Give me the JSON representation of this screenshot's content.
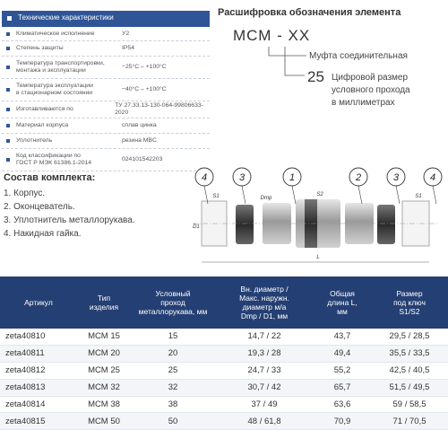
{
  "specs": {
    "title": "Технические характеристики",
    "rows": [
      [
        "Климатическое исполнение",
        "У2"
      ],
      [
        "Степень защиты",
        "IP54"
      ],
      [
        "Температура транспортировки,\nмонтажа и эксплуатации",
        "−25°C – +100°C"
      ],
      [
        "Температура эксплуатации\nв стационарном состоянии",
        "−40°C – +100°C"
      ],
      [
        "Изготавливаются по",
        "ТУ 27.33.13-130-064-99806633-2020"
      ],
      [
        "Материал корпуса",
        "сплав цинка"
      ],
      [
        "Уплотнитель",
        "резина MBC"
      ],
      [
        "Код классификации по\nГОСТ Р МЭК 61386.1-2014",
        "024101542203"
      ]
    ]
  },
  "decoding": {
    "title": "Расшифровка обозначения элемента",
    "code": "МСМ - XX",
    "code_meaning": "Муфта соединительная",
    "example": "25",
    "example_meaning": "Цифровой размер\nусловного прохода\nв миллиметрах"
  },
  "kit": {
    "title": "Состав комплекта:",
    "items": [
      "1. Корпус.",
      "2. Оконцеватель.",
      "3. Уплотнитель металлорукава.",
      "4. Накидная гайка."
    ]
  },
  "drawing": {
    "callouts": [
      "4",
      "3",
      "1",
      "2",
      "3",
      "4"
    ],
    "dims": [
      "S1",
      "D1",
      "Dmp",
      "S2",
      "S1",
      "L"
    ]
  },
  "table": {
    "header": [
      "Артикул",
      "Тип\nизделия",
      "Условный\nпроход\nметаллорукава, мм",
      "Вн. диаметр /\nМакс. наружн.\nдиаметр м/а\nDmp / D1, мм",
      "Общая\nдлина L,\nмм",
      "Размер\nпод ключ\nS1/S2"
    ],
    "rows": [
      [
        "zeta40810",
        "МСМ 15",
        "15",
        "14,7 / 22",
        "43,7",
        "29,5 / 28,5"
      ],
      [
        "zeta40811",
        "МСМ 20",
        "20",
        "19,3 / 28",
        "49,4",
        "35,5 / 33,5"
      ],
      [
        "zeta40812",
        "МСМ 25",
        "25",
        "24,7 / 33",
        "55,2",
        "42,5 / 40,5"
      ],
      [
        "zeta40813",
        "МСМ 32",
        "32",
        "30,7 / 42",
        "65,7",
        "51,5 / 49,5"
      ],
      [
        "zeta40814",
        "МСМ 38",
        "38",
        "37 / 49",
        "63,6",
        "59 / 58,5"
      ],
      [
        "zeta40815",
        "МСМ 50",
        "50",
        "48 / 61,8",
        "70,9",
        "71 / 70,5"
      ]
    ]
  }
}
